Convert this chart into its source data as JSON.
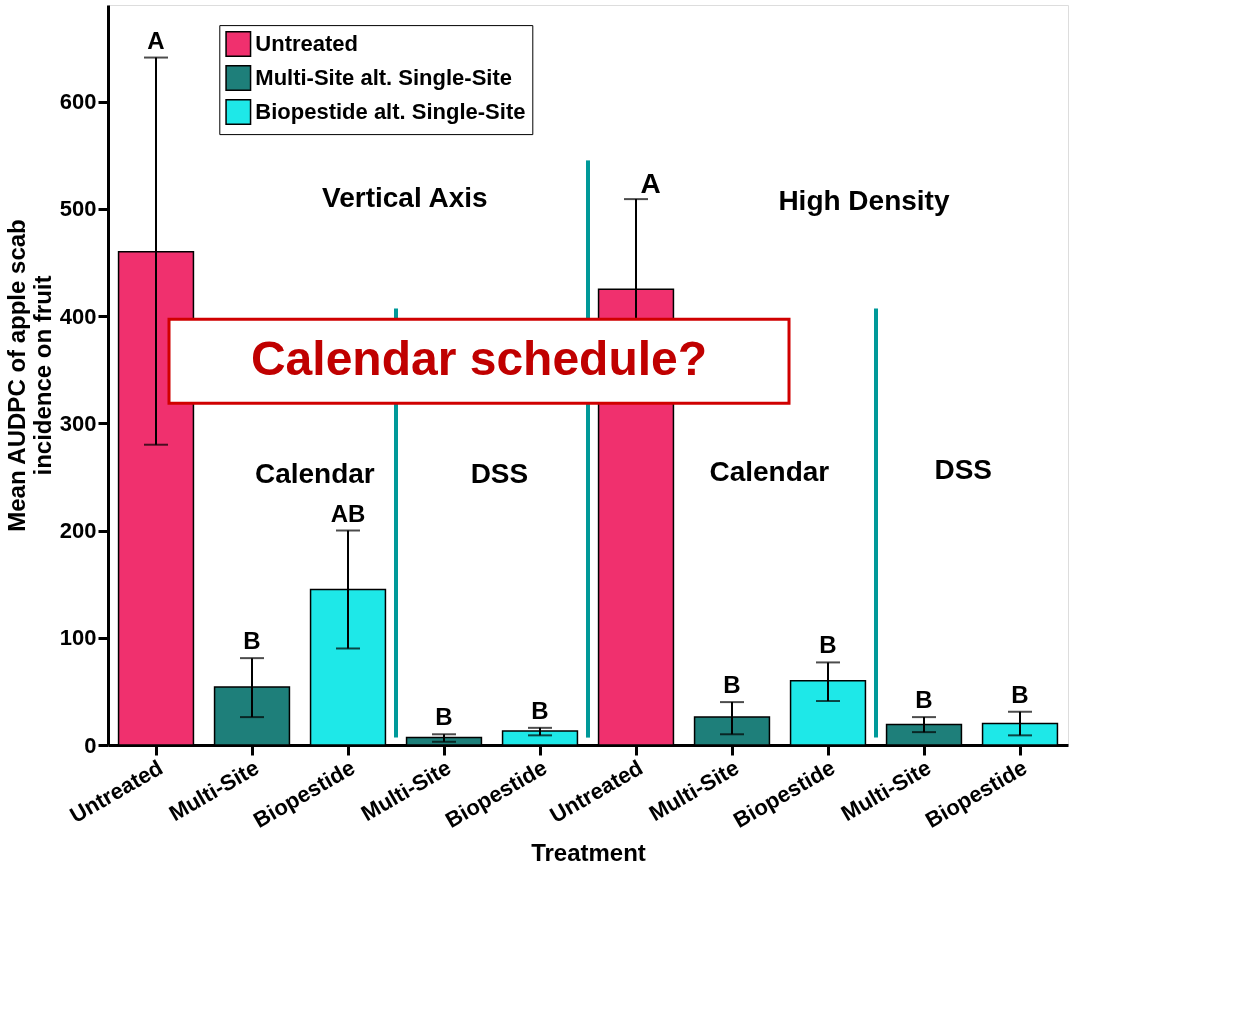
{
  "chart_data": {
    "type": "bar",
    "xlabel": "Treatment",
    "ylabel": "Mean AUDPC of apple scab\nincidence on fruit",
    "categories": [
      "Untreated",
      "Multi-Site",
      "Biopestide",
      "Multi-Site",
      "Biopestide",
      "Untreated",
      "Multi-Site",
      "Biopestide",
      "Multi-Site",
      "Biopestide"
    ],
    "series": [
      {
        "name": "Untreated",
        "color": "#f0306e",
        "values": [
          460,
          null,
          null,
          null,
          null,
          425,
          null,
          null,
          null,
          null
        ],
        "errors": [
          [
            280,
            641
          ],
          null,
          null,
          null,
          null,
          84,
          null,
          null,
          null,
          null
        ]
      },
      {
        "name": "Multi-Site alt. Single-Site",
        "color": "#1e7f7a",
        "values": [
          null,
          54,
          null,
          7,
          null,
          null,
          26,
          null,
          19,
          null
        ],
        "errors": [
          null,
          [
            26,
            81
          ],
          null,
          [
            3,
            10
          ],
          null,
          null,
          [
            10,
            40
          ],
          null,
          [
            12,
            26
          ],
          null
        ],
        "value_labels": [
          null,
          "B",
          null,
          "B",
          null,
          null,
          "B",
          null,
          "B",
          null
        ]
      },
      {
        "name": "Biopestide alt. Single-Site",
        "color": "#1ee8e8",
        "values": [
          null,
          null,
          145,
          null,
          13,
          null,
          null,
          60,
          null,
          20
        ],
        "errors": [
          null,
          null,
          [
            90,
            200
          ],
          null,
          [
            9,
            16
          ],
          null,
          null,
          [
            41,
            77
          ],
          null,
          [
            9,
            31
          ]
        ],
        "value_labels": [
          null,
          null,
          "AB",
          null,
          "B",
          null,
          null,
          "B",
          null,
          "B"
        ]
      }
    ],
    "ylim": [
      0,
      690
    ],
    "yticks": [
      0,
      100,
      200,
      300,
      400,
      500,
      600
    ],
    "grid": false,
    "legend": "top left",
    "annotations": [
      {
        "text": "A",
        "x": "Untreated",
        "y": 641
      },
      "A",
      "Vertical Axis",
      "High Density",
      "Calendar",
      "DSS",
      "Calendar",
      "DSS",
      "Calendar schedule?"
    ]
  }
}
